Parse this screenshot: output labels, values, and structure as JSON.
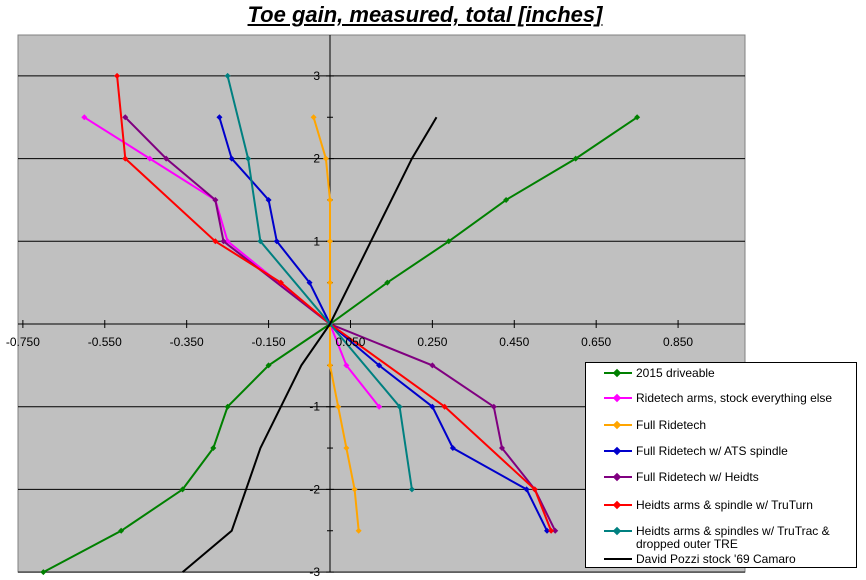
{
  "chart_data": {
    "type": "scatter",
    "title": "Toe gain, measured, total [inches]",
    "xlim": [
      -0.75,
      1.0
    ],
    "ylim": [
      -3,
      3
    ],
    "x_ticks": [
      "-0.750",
      "-0.550",
      "-0.350",
      "-0.150",
      "0.050",
      "0.250",
      "0.450",
      "0.650",
      "0.850"
    ],
    "x_tick_values": [
      -0.75,
      -0.55,
      -0.35,
      -0.15,
      0.05,
      0.25,
      0.45,
      0.65,
      0.85
    ],
    "y_ticks": [
      "-3",
      "-2",
      "-1",
      "0",
      "1",
      "2",
      "3"
    ],
    "y_tick_values": [
      -3,
      -2,
      -1,
      0,
      1,
      2,
      3
    ],
    "grid": "horizontal major lines",
    "background": "#c0c0c0",
    "legend_position": "bottom-right",
    "series": [
      {
        "name": "2015 driveable",
        "color": "#008000",
        "marker": "diamond",
        "points": [
          [
            -0.7,
            -3
          ],
          [
            -0.51,
            -2.5
          ],
          [
            -0.36,
            -2
          ],
          [
            -0.285,
            -1.5
          ],
          [
            -0.25,
            -1
          ],
          [
            -0.15,
            -0.5
          ],
          [
            0,
            0
          ],
          [
            0.14,
            0.5
          ],
          [
            0.29,
            1
          ],
          [
            0.43,
            1.5
          ],
          [
            0.6,
            2
          ],
          [
            0.75,
            2.5
          ]
        ]
      },
      {
        "name": "Ridetech arms, stock everything else",
        "color": "#ff00ff",
        "marker": "diamond",
        "points": [
          [
            -0.6,
            2.5
          ],
          [
            -0.44,
            2
          ],
          [
            -0.28,
            1.5
          ],
          [
            -0.25,
            1
          ],
          [
            0,
            0
          ],
          [
            0.04,
            -0.5
          ],
          [
            0.12,
            -1
          ]
        ]
      },
      {
        "name": "Full Ridetech",
        "color": "#ffa500",
        "marker": "diamond",
        "points": [
          [
            -0.04,
            2.5
          ],
          [
            -0.01,
            2
          ],
          [
            0,
            1.5
          ],
          [
            0,
            1
          ],
          [
            0,
            0.5
          ],
          [
            0,
            0
          ],
          [
            0,
            -0.5
          ],
          [
            0.02,
            -1
          ],
          [
            0.04,
            -1.5
          ],
          [
            0.06,
            -2
          ],
          [
            0.07,
            -2.5
          ]
        ]
      },
      {
        "name": "Full Ridetech w/ ATS spindle",
        "color": "#0000cc",
        "marker": "diamond",
        "points": [
          [
            -0.27,
            2.5
          ],
          [
            -0.24,
            2
          ],
          [
            -0.15,
            1.5
          ],
          [
            -0.13,
            1
          ],
          [
            -0.05,
            0.5
          ],
          [
            0,
            0
          ],
          [
            0.12,
            -0.5
          ],
          [
            0.25,
            -1
          ],
          [
            0.3,
            -1.5
          ],
          [
            0.48,
            -2
          ],
          [
            0.53,
            -2.5
          ]
        ]
      },
      {
        "name": "Full Ridetech w/ Heidts",
        "color": "#800080",
        "marker": "diamond",
        "points": [
          [
            -0.5,
            2.5
          ],
          [
            -0.4,
            2
          ],
          [
            -0.28,
            1.5
          ],
          [
            -0.26,
            1
          ],
          [
            0,
            0
          ],
          [
            0.25,
            -0.5
          ],
          [
            0.4,
            -1
          ],
          [
            0.42,
            -1.5
          ],
          [
            0.5,
            -2
          ],
          [
            0.55,
            -2.5
          ]
        ]
      },
      {
        "name": "Heidts arms & spindle w/ TruTurn",
        "color": "#ff0000",
        "marker": "diamond",
        "points": [
          [
            -0.52,
            3
          ],
          [
            -0.5,
            2
          ],
          [
            -0.28,
            1
          ],
          [
            -0.12,
            0.5
          ],
          [
            0,
            0
          ],
          [
            0.28,
            -1
          ],
          [
            0.5,
            -2
          ],
          [
            0.54,
            -2.5
          ]
        ]
      },
      {
        "name": "Heidts arms & spindles w/ TruTrac & dropped outer TRE",
        "color": "#008080",
        "marker": "diamond",
        "points": [
          [
            -0.25,
            3
          ],
          [
            -0.2,
            2
          ],
          [
            -0.17,
            1
          ],
          [
            0,
            0
          ],
          [
            0.17,
            -1
          ],
          [
            0.2,
            -2
          ]
        ]
      },
      {
        "name": "David Pozzi stock '69 Camaro",
        "color": "#000000",
        "marker": "none",
        "points": [
          [
            0.26,
            2.5
          ],
          [
            0.2,
            2
          ],
          [
            0.15,
            1.5
          ],
          [
            0.1,
            1
          ],
          [
            0.05,
            0.5
          ],
          [
            0,
            0
          ],
          [
            -0.07,
            -0.5
          ],
          [
            -0.12,
            -1
          ],
          [
            -0.17,
            -1.5
          ],
          [
            -0.24,
            -2.5
          ],
          [
            -0.36,
            -3
          ]
        ]
      }
    ]
  }
}
